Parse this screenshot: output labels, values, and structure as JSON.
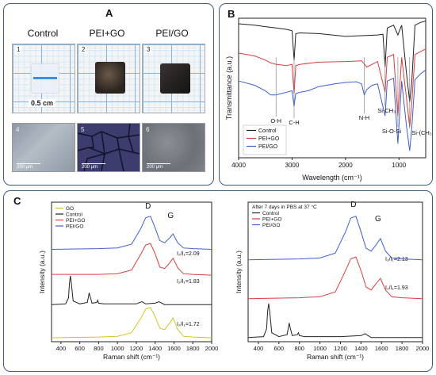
{
  "panels": {
    "a": {
      "label": "A",
      "photo_titles": [
        "Control",
        "PEI+GO",
        "PEI/GO"
      ],
      "photo_numbers": [
        "1",
        "2",
        "3"
      ],
      "scale_label": "0.5 cm",
      "micro_numbers": [
        "4",
        "5",
        "6"
      ],
      "micro_scale": "200 μm"
    },
    "b": {
      "label": "B"
    },
    "c": {
      "label": "C"
    }
  },
  "chart_data": [
    {
      "type": "line",
      "panel": "B",
      "xlabel": "Wavelength (cm⁻¹)",
      "ylabel": "Transmittance (a.u.)",
      "xlim": [
        4000,
        500
      ],
      "xticks": [
        4000,
        3000,
        2000,
        1000
      ],
      "yticks_shown": false,
      "legend_position": "bottom-left",
      "series": [
        {
          "name": "Control",
          "color": "#222222",
          "x": [
            4000,
            3700,
            3500,
            3300,
            3100,
            3000,
            2962,
            2930,
            2850,
            2500,
            2000,
            1700,
            1400,
            1300,
            1260,
            1220,
            1100,
            1020,
            950,
            864,
            800,
            760,
            700,
            600,
            500
          ],
          "y": [
            96,
            95,
            94,
            93,
            92,
            91,
            70,
            89,
            89.5,
            89,
            87,
            87.5,
            88,
            88.5,
            65,
            93,
            95,
            88,
            95,
            62,
            40,
            55,
            95,
            97,
            98
          ]
        },
        {
          "name": "PEI+GO",
          "color": "#e23a3a",
          "x": [
            4000,
            3700,
            3500,
            3400,
            3300,
            3100,
            3000,
            2962,
            2930,
            2850,
            2500,
            2000,
            1700,
            1600,
            1400,
            1260,
            1220,
            1100,
            1020,
            950,
            864,
            800,
            760,
            700,
            600,
            500
          ],
          "y": [
            75,
            73,
            70,
            68,
            67,
            66,
            67,
            46,
            66,
            67,
            68.5,
            69,
            69.5,
            65,
            69,
            47,
            72,
            74,
            30,
            72,
            44,
            22,
            40,
            74,
            76,
            78
          ]
        },
        {
          "name": "PEI/GO",
          "color": "#3a5fd8",
          "x": [
            4000,
            3700,
            3500,
            3400,
            3300,
            3200,
            3100,
            3000,
            2962,
            2930,
            2850,
            2700,
            2500,
            2200,
            2000,
            1800,
            1700,
            1650,
            1600,
            1500,
            1400,
            1260,
            1220,
            1100,
            1020,
            950,
            864,
            800,
            760,
            700,
            600,
            500
          ],
          "y": [
            55,
            52,
            48,
            45,
            45,
            46,
            47,
            48,
            37,
            46,
            47,
            48,
            51,
            53,
            54,
            54.5,
            53,
            45,
            49,
            52,
            53,
            30,
            55,
            57,
            10,
            55,
            24,
            5,
            22,
            56,
            60,
            63
          ]
        }
      ],
      "annotations": [
        {
          "text": "O-H",
          "x": 3300
        },
        {
          "text": "C-H",
          "x": 2962
        },
        {
          "text": "N-H",
          "x": 1650
        },
        {
          "text": "Si-CH₃",
          "x": 1260
        },
        {
          "text": "Si-O-Si",
          "x": 1020
        },
        {
          "text": "Si-(CH₃)₂",
          "x": 800
        }
      ]
    },
    {
      "type": "line",
      "panel": "C-left",
      "xlabel": "Raman shift (cm⁻¹)",
      "ylabel": "Intensity (a.u.)",
      "xlim": [
        300,
        2000
      ],
      "xticks": [
        400,
        600,
        800,
        1000,
        1200,
        1400,
        1600,
        1800,
        2000
      ],
      "legend_position": "top-left",
      "peak_labels": [
        {
          "text": "D",
          "x": 1350
        },
        {
          "text": "G",
          "x": 1590
        }
      ],
      "ratios": [
        "I₂/I₁=2.09",
        "I₂/I₁=1.83",
        "I₂/I₁=1.72"
      ],
      "ratio_values": [
        2.09,
        1.83,
        1.72
      ],
      "series": [
        {
          "name": "GO",
          "color": "#d6c51a",
          "offset": 0,
          "x": [
            300,
            500,
            800,
            1000,
            1150,
            1250,
            1300,
            1350,
            1400,
            1450,
            1500,
            1550,
            1590,
            1640,
            1700,
            1800,
            2000
          ],
          "y": [
            1,
            1.5,
            2,
            3,
            8,
            28,
            40,
            42,
            30,
            14,
            12,
            20,
            28,
            12,
            3,
            2,
            1
          ]
        },
        {
          "name": "Control",
          "color": "#222222",
          "offset": 45,
          "x": [
            300,
            450,
            480,
            490,
            500,
            510,
            530,
            600,
            680,
            700,
            710,
            730,
            780,
            790,
            800,
            850,
            1000,
            1200,
            1260,
            1300,
            1400,
            1440,
            1500,
            2000
          ],
          "y": [
            1,
            2,
            10,
            30,
            40,
            30,
            6,
            2,
            4,
            17,
            12,
            3,
            4,
            7,
            3,
            2,
            2,
            2,
            5,
            2,
            3,
            5,
            1,
            1
          ]
        },
        {
          "name": "PEI+GO",
          "color": "#e23a3a",
          "offset": 85,
          "x": [
            300,
            500,
            800,
            1000,
            1150,
            1250,
            1300,
            1350,
            1400,
            1450,
            1500,
            1550,
            1590,
            1640,
            1700,
            1800,
            2000
          ],
          "y": [
            2,
            2,
            2,
            3,
            8,
            30,
            42,
            44,
            30,
            12,
            10,
            17,
            24,
            11,
            3,
            2,
            1
          ]
        },
        {
          "name": "PEI/GO",
          "color": "#3a5fd8",
          "offset": 120,
          "x": [
            300,
            500,
            800,
            1000,
            1150,
            1250,
            1300,
            1350,
            1400,
            1450,
            1500,
            1550,
            1590,
            1640,
            1700,
            1800,
            2000
          ],
          "y": [
            1,
            1.5,
            2,
            3,
            8,
            30,
            44,
            46,
            30,
            13,
            10,
            16,
            22,
            10,
            3,
            2,
            1
          ]
        }
      ]
    },
    {
      "type": "line",
      "panel": "C-right",
      "title": "After 7 days in PBS at 37 °C",
      "xlabel": "Raman shift (cm⁻¹)",
      "ylabel": "Intensity (a.u.)",
      "xlim": [
        300,
        2000
      ],
      "xticks": [
        400,
        600,
        800,
        1000,
        1200,
        1400,
        1600,
        1800,
        2000
      ],
      "legend_position": "top-left",
      "peak_labels": [
        {
          "text": "D",
          "x": 1350
        },
        {
          "text": "G",
          "x": 1590
        }
      ],
      "ratios": [
        "I₂/I₁=2.13",
        "I₂/I₁=1.93"
      ],
      "ratio_values": [
        2.13,
        1.93
      ],
      "series": [
        {
          "name": "Control",
          "color": "#222222",
          "offset": 0,
          "x": [
            300,
            450,
            480,
            490,
            500,
            510,
            530,
            600,
            680,
            700,
            710,
            730,
            780,
            790,
            800,
            850,
            1000,
            1200,
            1400,
            1440,
            1500,
            2000
          ],
          "y": [
            1,
            2,
            10,
            28,
            36,
            28,
            6,
            2,
            4,
            16,
            11,
            3,
            4,
            6,
            3,
            2,
            2,
            2,
            3,
            5,
            1,
            1
          ]
        },
        {
          "name": "PEI+GO",
          "color": "#e23a3a",
          "offset": 40,
          "x": [
            300,
            500,
            800,
            1000,
            1150,
            1250,
            1300,
            1350,
            1400,
            1450,
            1500,
            1550,
            1590,
            1640,
            1700,
            1800,
            2000
          ],
          "y": [
            1,
            1.5,
            2,
            3,
            8,
            30,
            42,
            44,
            30,
            13,
            10,
            17,
            22,
            10,
            3,
            2,
            1
          ]
        },
        {
          "name": "PEI/GO",
          "color": "#3a5fd8",
          "offset": 80,
          "x": [
            300,
            500,
            800,
            1000,
            1150,
            1250,
            1300,
            1350,
            1400,
            1450,
            1500,
            1550,
            1590,
            1640,
            1700,
            1800,
            2000
          ],
          "y": [
            1,
            1.5,
            2,
            3,
            8,
            30,
            44,
            46,
            30,
            13,
            10,
            17,
            23,
            10,
            3,
            2,
            1
          ]
        }
      ]
    }
  ]
}
